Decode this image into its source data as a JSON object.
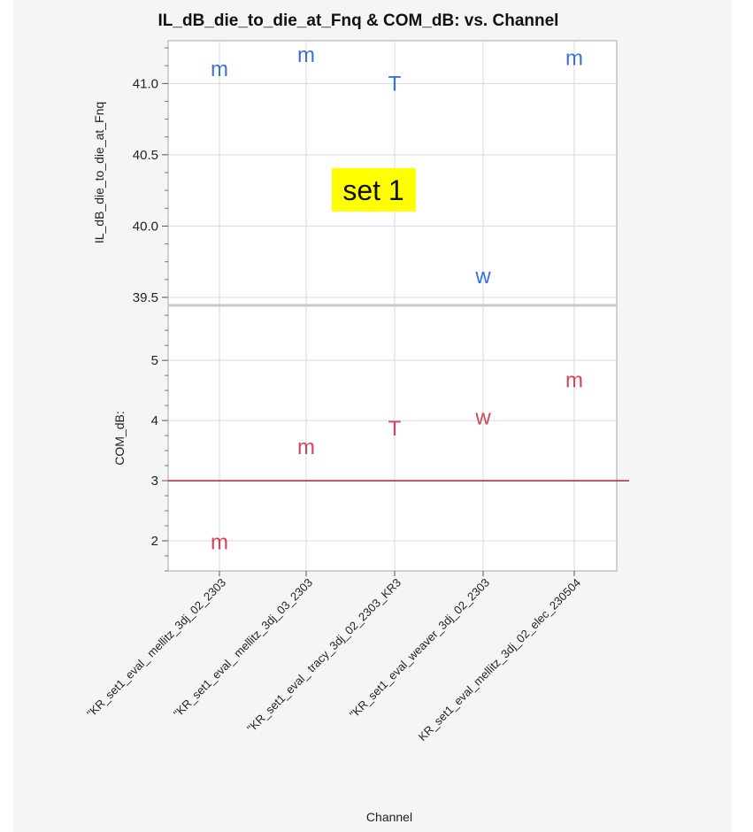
{
  "chart_data": {
    "type": "scatter",
    "title": "IL_dB_die_to_die_at_Fnq & COM_dB: vs. Channel",
    "xlabel": "Channel",
    "categories": [
      "\"KR_set1_eval_ mellitz_3dj_02_2303",
      "\"KR_set1_eval_ mellitz_3dj_03_2303",
      "\"KR_set1_eval_ tracy_3dj_02_2303_KR3",
      "\"KR_set1_eval_weaver_3dj_02_2303",
      "KR_set1_eval_mellitz_3dj_02_elec_230504"
    ],
    "panels": [
      {
        "ylabel": "IL_dB_die_to_die_at_Fnq",
        "ylim": [
          39.45,
          41.3
        ],
        "yticks": [
          "39.5",
          "40.0",
          "40.5",
          "41.0"
        ],
        "color": "#3f6fd6",
        "markers": [
          "m",
          "m",
          "T",
          "w",
          "m"
        ],
        "values": [
          41.1,
          41.2,
          41.0,
          39.65,
          41.18
        ]
      },
      {
        "ylabel": "COM_dB:",
        "ylim": [
          1.5,
          5.9
        ],
        "yticks": [
          "2",
          "3",
          "4",
          "5"
        ],
        "color": "#d2455a",
        "markers": [
          "m",
          "m",
          "T",
          "w",
          "m"
        ],
        "values": [
          1.98,
          3.56,
          3.87,
          4.05,
          4.67
        ],
        "reference_line": 3
      }
    ],
    "annotation": "set 1",
    "grid": true
  }
}
